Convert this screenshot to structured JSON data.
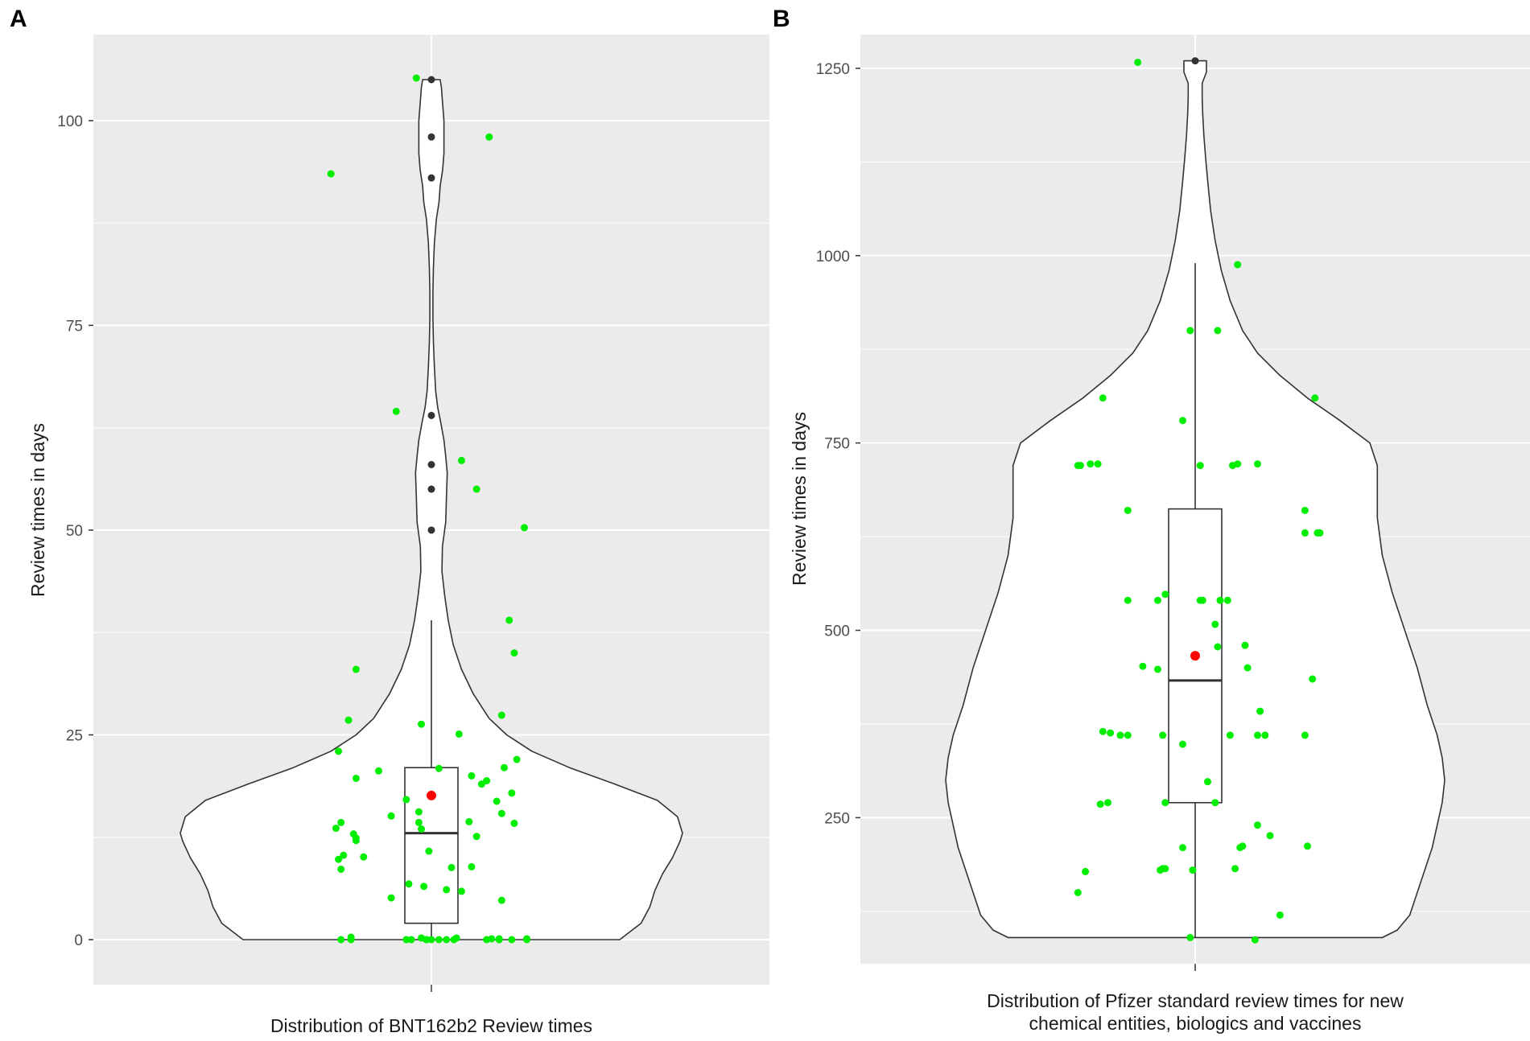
{
  "figure_labels": [
    "A",
    "B"
  ],
  "chart_data": [
    {
      "type": "violin",
      "panel": "A",
      "title": "",
      "xlabel": "Distribution of BNT162b2 Review times",
      "ylabel": "Review times in days",
      "ylim": [
        -5.5,
        110.5
      ],
      "yticks": [
        0,
        25,
        50,
        75,
        100
      ],
      "ytick_labels": [
        "0",
        "25",
        "50",
        "75",
        "100"
      ],
      "grid": true,
      "colors": {
        "panel_bg": "#ebebeb",
        "grid": "#ffffff",
        "violin_fill": "#ffffff",
        "outline": "#333333",
        "points": "#00ee00",
        "mean": "#ff0000",
        "outliers": "#333333"
      },
      "violin": {
        "y": [
          0,
          2,
          4,
          6,
          8,
          10,
          12,
          13,
          15,
          17,
          19,
          21,
          23,
          25,
          27,
          30,
          33,
          36,
          39,
          42,
          45,
          48,
          51,
          54,
          57,
          59,
          61,
          63,
          65,
          67,
          70,
          73,
          76,
          79,
          82,
          85,
          88,
          90,
          92,
          94,
          96,
          98,
          100,
          102,
          104,
          105
        ],
        "density": [
          0.75,
          0.835,
          0.87,
          0.89,
          0.92,
          0.96,
          0.99,
          1.0,
          0.98,
          0.9,
          0.73,
          0.55,
          0.4,
          0.3,
          0.23,
          0.167,
          0.12,
          0.087,
          0.067,
          0.053,
          0.042,
          0.044,
          0.057,
          0.06,
          0.063,
          0.057,
          0.05,
          0.038,
          0.025,
          0.017,
          0.012,
          0.008,
          0.006,
          0.006,
          0.008,
          0.012,
          0.02,
          0.03,
          0.035,
          0.045,
          0.05,
          0.05,
          0.05,
          0.045,
          0.04,
          0.035
        ]
      },
      "box": {
        "q1": 2,
        "median": 13,
        "q3": 21,
        "whisker_low": 0,
        "whisker_high": 39
      },
      "mean": 17.6,
      "outliers": [
        50,
        55,
        58,
        64,
        93,
        98,
        105
      ],
      "points": {
        "offsets": [
          -0.4,
          0.23,
          0.12,
          -0.14,
          -0.3,
          0.37,
          0.31,
          0.18,
          -0.33,
          -0.04,
          0.11,
          0.28,
          0.33,
          -0.21,
          -0.3,
          0.16,
          0.2,
          0.22,
          -0.36,
          0.03,
          -0.38,
          0.29,
          0.34,
          0.28,
          0.15,
          0.18,
          0.26,
          0.33,
          -0.3,
          -0.3,
          -0.05,
          -0.1,
          0.08,
          -0.16,
          -0.37,
          -0.27,
          -0.04,
          -0.05,
          -0.31,
          0.32,
          -0.35,
          0.28,
          0.16,
          -0.01,
          -0.36,
          -0.16,
          -0.37,
          0.06,
          -0.09,
          -0.03,
          0.12,
          -0.36,
          -0.02,
          -0.1,
          -0.08,
          -0.04,
          0.27,
          0.27,
          -0.32,
          -0.32,
          -0.02,
          0.0,
          0.03,
          0.06,
          0.09,
          0.1,
          0.22,
          0.24,
          0.27,
          0.32,
          0.38,
          0.38,
          -0.06
        ],
        "values": [
          93.5,
          98,
          58.5,
          64.5,
          33,
          50.3,
          39,
          55,
          26.8,
          26.3,
          25.1,
          27.4,
          35,
          20.6,
          19.7,
          20,
          19,
          19.4,
          14.3,
          20.9,
          13.6,
          21,
          22,
          15.4,
          14.4,
          12.6,
          16.9,
          14.2,
          12.4,
          12.1,
          15.6,
          17.1,
          8.8,
          15.1,
          9.8,
          10.1,
          13.5,
          14.3,
          12.9,
          17.9,
          10.3,
          4.8,
          8.9,
          10.8,
          8.6,
          5.1,
          23,
          6.1,
          6.8,
          6.5,
          5.9,
          0,
          0,
          0,
          0,
          0.2,
          0.1,
          0,
          0.3,
          0,
          0,
          0,
          0,
          0,
          0,
          0.2,
          0,
          0.1,
          0,
          0,
          0.1,
          0,
          105.2
        ]
      }
    },
    {
      "type": "violin",
      "panel": "B",
      "title": "",
      "xlabel": "Distribution of Pfizer standard review times for new chemical entities, biologics and vaccines",
      "xlabel_lines": [
        "Distribution of Pfizer standard review times for new",
        "chemical entities, biologics and vaccines"
      ],
      "ylabel": "Review times in days",
      "ylim": [
        55,
        1295
      ],
      "yticks": [
        250,
        500,
        750,
        1000,
        1250
      ],
      "ytick_labels": [
        "250",
        "500",
        "750",
        "1000",
        "1250"
      ],
      "grid": true,
      "colors": {
        "panel_bg": "#ebebeb",
        "grid": "#ffffff",
        "violin_fill": "#ffffff",
        "outline": "#333333",
        "points": "#00ee00",
        "mean": "#ff0000",
        "outliers": "#333333"
      },
      "violin": {
        "y": [
          90,
          100,
          120,
          150,
          180,
          210,
          240,
          270,
          300,
          330,
          360,
          400,
          450,
          500,
          550,
          600,
          650,
          690,
          720,
          750,
          780,
          810,
          840,
          870,
          900,
          940,
          980,
          1020,
          1060,
          1100,
          1130,
          1160,
          1190,
          1210,
          1230,
          1245,
          1260
        ],
        "density": [
          0.75,
          0.81,
          0.86,
          0.89,
          0.92,
          0.95,
          0.97,
          0.99,
          1.0,
          0.99,
          0.97,
          0.93,
          0.89,
          0.84,
          0.79,
          0.75,
          0.73,
          0.73,
          0.73,
          0.7,
          0.58,
          0.45,
          0.34,
          0.25,
          0.19,
          0.14,
          0.105,
          0.08,
          0.062,
          0.05,
          0.042,
          0.035,
          0.03,
          0.028,
          0.028,
          0.045,
          0.045
        ]
      },
      "box": {
        "q1": 270,
        "median": 433,
        "q3": 662,
        "whisker_low": 90,
        "whisker_high": 990
      },
      "mean": 466,
      "outliers": [
        1260
      ],
      "points": {
        "offsets": [
          -0.23,
          0.17,
          -0.02,
          0.09,
          -0.37,
          0.48,
          -0.05,
          -0.47,
          -0.46,
          -0.39,
          -0.42,
          0.02,
          0.15,
          0.17,
          0.25,
          -0.27,
          0.44,
          -0.12,
          0.03,
          0.5,
          0.44,
          0.49,
          -0.27,
          0.02,
          0.13,
          -0.15,
          0.1,
          0.08,
          0.2,
          0.09,
          0.26,
          -0.21,
          -0.15,
          0.3,
          0.47,
          -0.37,
          -0.34,
          -0.3,
          -0.27,
          -0.13,
          -0.05,
          0.14,
          0.25,
          0.28,
          0.44,
          -0.35,
          -0.38,
          -0.12,
          0.05,
          -0.13,
          0.19,
          0.25,
          0.08,
          -0.05,
          0.18,
          0.16,
          0.45,
          -0.01,
          -0.44,
          -0.14,
          -0.12,
          0.34,
          -0.02,
          -0.47,
          0.21,
          0.24
        ],
        "values": [
          1258,
          988,
          900,
          900,
          810,
          810,
          780,
          720,
          720,
          722,
          722,
          720,
          720,
          722,
          722,
          660,
          660,
          548,
          540,
          630,
          630,
          630,
          540,
          540,
          540,
          540,
          540,
          508,
          480,
          478,
          392,
          452,
          448,
          226,
          435,
          365,
          363,
          360,
          360,
          360,
          348,
          360,
          360,
          360,
          360,
          270,
          268,
          270,
          298,
          182,
          212,
          240,
          270,
          210,
          210,
          182,
          212,
          180,
          178,
          180,
          182,
          120,
          90,
          150,
          450,
          87
        ]
      }
    }
  ]
}
